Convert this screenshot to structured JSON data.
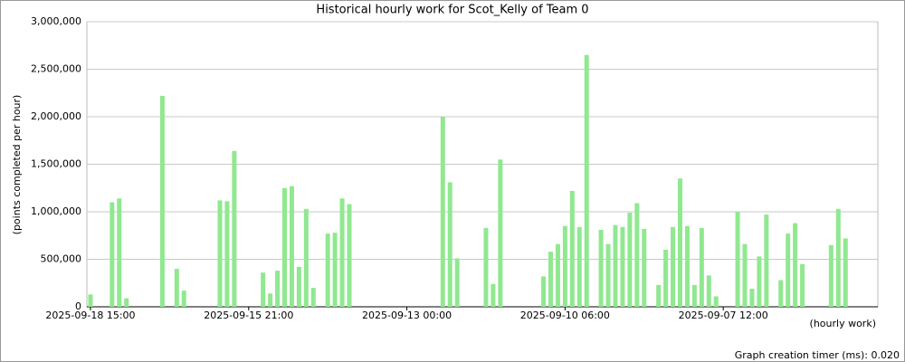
{
  "chart_data": {
    "type": "bar",
    "title": "Historical hourly work for Scot_Kelly of Team 0",
    "y_label": "(points completed per hour)",
    "x_label": "(hourly work)",
    "footer": "Graph creation timer (ms): 0.020",
    "color": "#90e890",
    "grid": true,
    "ylim": [
      0,
      3000000
    ],
    "yticks": [
      {
        "value": 0,
        "label": "0"
      },
      {
        "value": 500000,
        "label": "500,000"
      },
      {
        "value": 1000000,
        "label": "1,000,000"
      },
      {
        "value": 1500000,
        "label": "1,500,000"
      },
      {
        "value": 2000000,
        "label": "2,000,000"
      },
      {
        "value": 2500000,
        "label": "2,500,000"
      },
      {
        "value": 3000000,
        "label": "3,000,000"
      }
    ],
    "categories": [
      "2025-09-18 15:00",
      null,
      null,
      null,
      null,
      null,
      null,
      null,
      null,
      null,
      null,
      null,
      null,
      null,
      null,
      null,
      null,
      null,
      null,
      null,
      null,
      null,
      "2025-09-15 21:00",
      null,
      null,
      null,
      null,
      null,
      null,
      null,
      null,
      null,
      null,
      null,
      null,
      null,
      null,
      null,
      null,
      null,
      null,
      null,
      null,
      null,
      "2025-09-13 00:00",
      null,
      null,
      null,
      null,
      null,
      null,
      null,
      null,
      null,
      null,
      null,
      null,
      null,
      null,
      null,
      null,
      null,
      null,
      null,
      null,
      null,
      "2025-09-10 06:00",
      null,
      null,
      null,
      null,
      null,
      null,
      null,
      null,
      null,
      null,
      null,
      null,
      null,
      null,
      null,
      null,
      null,
      null,
      null,
      null,
      null,
      "2025-09-07 12:00",
      null,
      null,
      null,
      null,
      null,
      null,
      null,
      null,
      null,
      null,
      null,
      null,
      null,
      null,
      null,
      null,
      null,
      null,
      null,
      null,
      null
    ],
    "values": [
      130000,
      0,
      0,
      1100000,
      1140000,
      90000,
      0,
      0,
      0,
      0,
      2220000,
      0,
      400000,
      170000,
      0,
      0,
      0,
      0,
      1120000,
      1110000,
      1640000,
      0,
      0,
      0,
      360000,
      140000,
      380000,
      1250000,
      1270000,
      420000,
      1030000,
      200000,
      0,
      770000,
      780000,
      1140000,
      1080000,
      0,
      0,
      0,
      0,
      0,
      0,
      0,
      0,
      0,
      0,
      0,
      0,
      2000000,
      1310000,
      510000,
      0,
      0,
      0,
      830000,
      240000,
      1550000,
      0,
      0,
      0,
      0,
      0,
      320000,
      580000,
      660000,
      850000,
      1220000,
      840000,
      2650000,
      0,
      810000,
      660000,
      860000,
      840000,
      990000,
      1090000,
      820000,
      0,
      230000,
      600000,
      840000,
      1350000,
      850000,
      230000,
      830000,
      330000,
      110000,
      0,
      0,
      1000000,
      660000,
      190000,
      530000,
      970000,
      0,
      280000,
      770000,
      880000,
      450000,
      0,
      0,
      0,
      650000,
      1030000,
      720000,
      0,
      0,
      0,
      0
    ]
  }
}
